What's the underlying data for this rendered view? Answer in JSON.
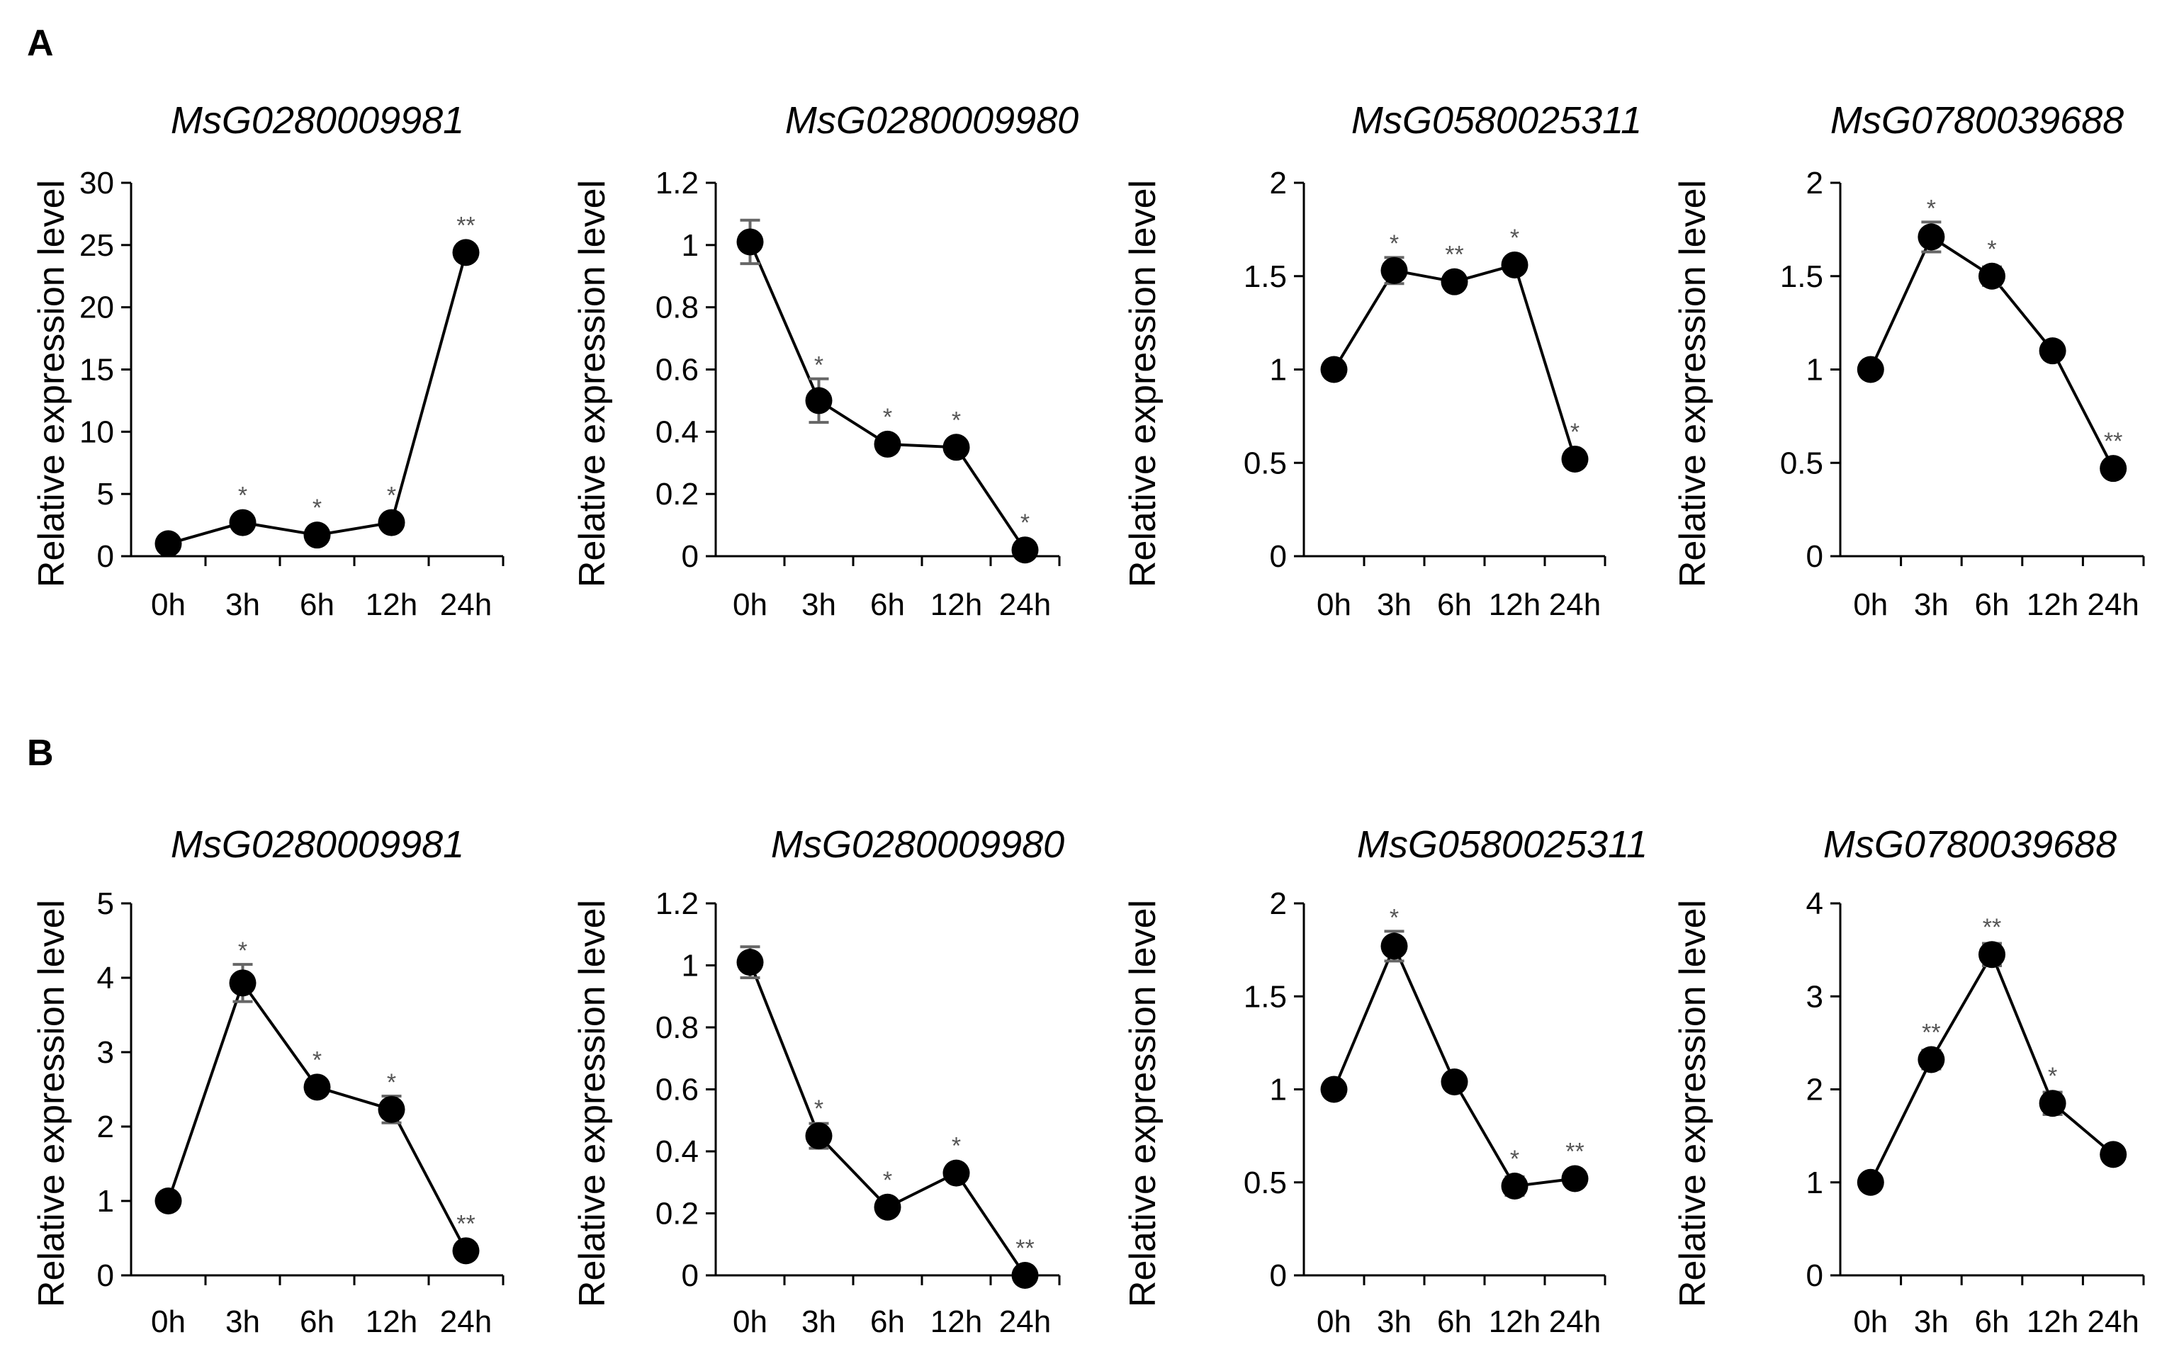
{
  "panels": [
    {
      "letter": "A"
    },
    {
      "letter": "B"
    }
  ],
  "chart_data": [
    {
      "type": "line",
      "panel": "A",
      "title": "MsG0280009981",
      "xlabel": "",
      "ylabel": "Relative expression level",
      "categories": [
        "0h",
        "3h",
        "6h",
        "12h",
        "24h"
      ],
      "values": [
        1,
        2.7,
        1.7,
        2.7,
        24.4
      ],
      "errors": [
        0.05,
        0.3,
        0.2,
        0.3,
        0.6
      ],
      "significance": [
        "",
        "*",
        "*",
        "*",
        "**"
      ],
      "ylim": [
        0,
        30
      ],
      "yticks": [
        "0",
        "5",
        "10",
        "15",
        "20",
        "25",
        "30"
      ]
    },
    {
      "type": "line",
      "panel": "A",
      "title": "MsG0280009980",
      "xlabel": "",
      "ylabel": "Relative expression level",
      "categories": [
        "0h",
        "3h",
        "6h",
        "12h",
        "24h"
      ],
      "values": [
        1.01,
        0.5,
        0.36,
        0.35,
        0.02
      ],
      "errors": [
        0.07,
        0.07,
        0.02,
        0.02,
        0.01
      ],
      "significance": [
        "",
        "*",
        "*",
        "*",
        "*"
      ],
      "ylim": [
        0,
        1.2
      ],
      "yticks": [
        "0",
        "0.2",
        "0.4",
        "0.6",
        "0.8",
        "1",
        "1.2"
      ]
    },
    {
      "type": "line",
      "panel": "A",
      "title": "MsG0580025311",
      "xlabel": "",
      "ylabel": "Relative expression level",
      "categories": [
        "0h",
        "3h",
        "6h",
        "12h",
        "24h"
      ],
      "values": [
        1.0,
        1.53,
        1.47,
        1.56,
        0.52
      ],
      "errors": [
        0.02,
        0.07,
        0.04,
        0.04,
        0.03
      ],
      "significance": [
        "",
        "*",
        "**",
        "*",
        "*"
      ],
      "ylim": [
        0,
        2
      ],
      "yticks": [
        "0",
        "0.5",
        "1",
        "1.5",
        "2"
      ]
    },
    {
      "type": "line",
      "panel": "A",
      "title": "MsG0780039688",
      "xlabel": "",
      "ylabel": "Relative expression level",
      "categories": [
        "0h",
        "3h",
        "6h",
        "12h",
        "24h"
      ],
      "values": [
        1.0,
        1.71,
        1.5,
        1.1,
        0.47
      ],
      "errors": [
        0.02,
        0.08,
        0.05,
        0.03,
        0.03
      ],
      "significance": [
        "",
        "*",
        "*",
        "",
        "**"
      ],
      "ylim": [
        0,
        2
      ],
      "yticks": [
        "0",
        "0.5",
        "1",
        "1.5",
        "2"
      ]
    },
    {
      "type": "line",
      "panel": "B",
      "title": "MsG0280009981",
      "xlabel": "",
      "ylabel": "Relative expression level",
      "categories": [
        "0h",
        "3h",
        "6h",
        "12h",
        "24h"
      ],
      "values": [
        1.0,
        3.93,
        2.53,
        2.23,
        0.33
      ],
      "errors": [
        0.03,
        0.25,
        0.1,
        0.18,
        0.03
      ],
      "significance": [
        "",
        "*",
        "*",
        "*",
        "**"
      ],
      "ylim": [
        0,
        5
      ],
      "yticks": [
        "0",
        "1",
        "2",
        "3",
        "4",
        "5"
      ]
    },
    {
      "type": "line",
      "panel": "B",
      "title": "MsG0280009980",
      "xlabel": "",
      "ylabel": "Relative expression level",
      "categories": [
        "0h",
        "3h",
        "6h",
        "12h",
        "24h"
      ],
      "values": [
        1.01,
        0.45,
        0.22,
        0.33,
        0.0
      ],
      "errors": [
        0.05,
        0.04,
        0.02,
        0.02,
        0.01
      ],
      "significance": [
        "",
        "*",
        "*",
        "*",
        "**"
      ],
      "ylim": [
        0,
        1.2
      ],
      "yticks": [
        "0",
        "0.2",
        "0.4",
        "0.6",
        "0.8",
        "1",
        "1.2"
      ]
    },
    {
      "type": "line",
      "panel": "B",
      "title": "MsG0580025311",
      "xlabel": "",
      "ylabel": "Relative expression level",
      "categories": [
        "0h",
        "3h",
        "6h",
        "12h",
        "24h"
      ],
      "values": [
        1.0,
        1.77,
        1.04,
        0.48,
        0.52
      ],
      "errors": [
        0.02,
        0.08,
        0.03,
        0.05,
        0.03
      ],
      "significance": [
        "",
        "*",
        "",
        "*",
        "**"
      ],
      "ylim": [
        0,
        2
      ],
      "yticks": [
        "0",
        "0.5",
        "1",
        "1.5",
        "2"
      ]
    },
    {
      "type": "line",
      "panel": "B",
      "title": "MsG0780039688",
      "xlabel": "",
      "ylabel": "Relative expression level",
      "categories": [
        "0h",
        "3h",
        "6h",
        "12h",
        "24h"
      ],
      "values": [
        1.0,
        2.32,
        3.45,
        1.85,
        1.3
      ],
      "errors": [
        0.02,
        0.1,
        0.12,
        0.12,
        0.04
      ],
      "significance": [
        "",
        "**",
        "**",
        "*",
        ""
      ],
      "ylim": [
        0,
        4
      ],
      "yticks": [
        "0",
        "1",
        "2",
        "3",
        "4"
      ]
    }
  ]
}
